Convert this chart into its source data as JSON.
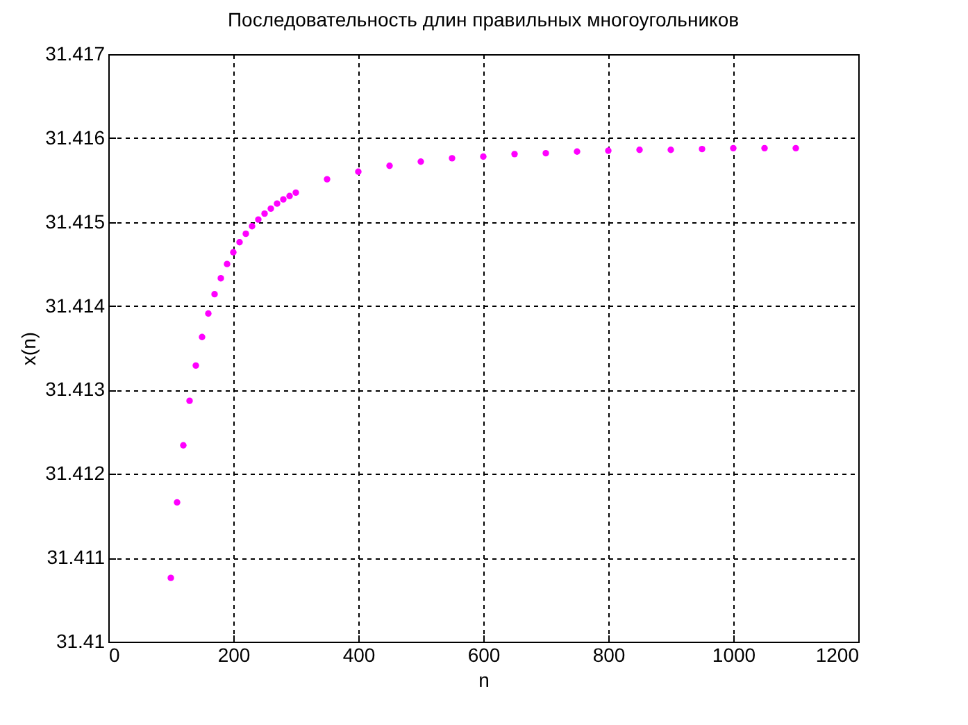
{
  "chart_data": {
    "type": "scatter",
    "title": "Последовательность длин правильных многоугольников",
    "xlabel": "n",
    "ylabel": "x(n)",
    "x": [
      100,
      110,
      120,
      130,
      140,
      150,
      160,
      170,
      180,
      190,
      200,
      210,
      220,
      230,
      240,
      250,
      260,
      270,
      280,
      290,
      300,
      350,
      400,
      450,
      500,
      550,
      600,
      650,
      700,
      750,
      800,
      850,
      900,
      950,
      1000,
      1050,
      1100
    ],
    "series": [
      {
        "color": "#ff00ff",
        "values": [
          31.41076,
          31.41166,
          31.41234,
          31.41287,
          31.41329,
          31.41363,
          31.41391,
          31.41414,
          31.41433,
          31.4145,
          31.41464,
          31.41476,
          31.41486,
          31.41495,
          31.41503,
          31.4151,
          31.41516,
          31.41522,
          31.41527,
          31.41531,
          31.41535,
          31.41551,
          31.4156,
          31.41567,
          31.41572,
          31.41576,
          31.41578,
          31.41581,
          31.41582,
          31.41584,
          31.41585,
          31.41586,
          31.41586,
          31.41587,
          31.41588,
          31.41588,
          31.41588
        ]
      }
    ],
    "xlim": [
      0,
      1200
    ],
    "ylim": [
      31.41,
      31.417
    ],
    "xticks": [
      0,
      200,
      400,
      600,
      800,
      1000,
      1200
    ],
    "yticks": [
      31.41,
      31.411,
      31.412,
      31.413,
      31.414,
      31.415,
      31.416,
      31.417
    ],
    "grid": true,
    "marker": "circle"
  }
}
